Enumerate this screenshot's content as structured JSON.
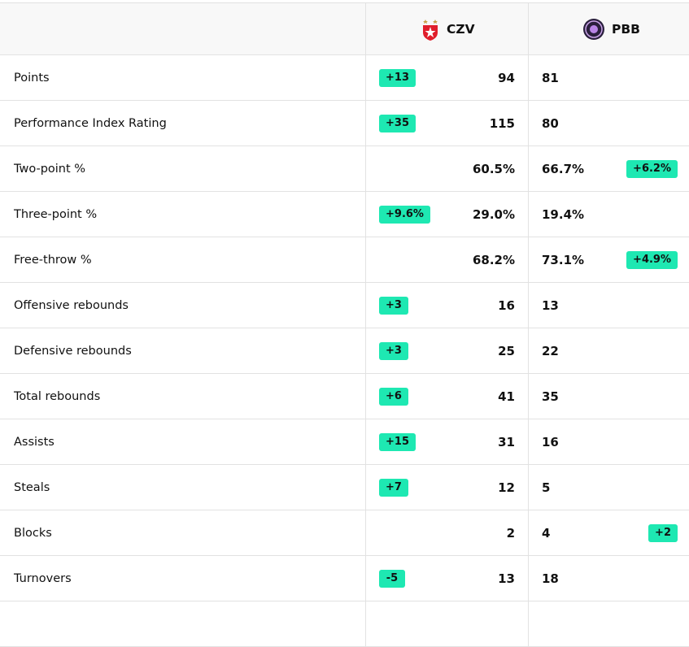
{
  "header": {
    "home_team": "CZV",
    "away_team": "PBB"
  },
  "rows": [
    {
      "label": "Points",
      "home": "94",
      "away": "81",
      "home_diff": "+13"
    },
    {
      "label": "Performance Index Rating",
      "home": "115",
      "away": "80",
      "home_diff": "+35"
    },
    {
      "label": "Two-point %",
      "home": "60.5%",
      "away": "66.7%",
      "away_diff": "+6.2%"
    },
    {
      "label": "Three-point %",
      "home": "29.0%",
      "away": "19.4%",
      "home_diff": "+9.6%"
    },
    {
      "label": "Free-throw %",
      "home": "68.2%",
      "away": "73.1%",
      "away_diff": "+4.9%"
    },
    {
      "label": "Offensive rebounds",
      "home": "16",
      "away": "13",
      "home_diff": "+3"
    },
    {
      "label": "Defensive rebounds",
      "home": "25",
      "away": "22",
      "home_diff": "+3"
    },
    {
      "label": "Total rebounds",
      "home": "41",
      "away": "35",
      "home_diff": "+6"
    },
    {
      "label": "Assists",
      "home": "31",
      "away": "16",
      "home_diff": "+15"
    },
    {
      "label": "Steals",
      "home": "12",
      "away": "5",
      "home_diff": "+7"
    },
    {
      "label": "Blocks",
      "home": "2",
      "away": "4",
      "away_diff": "+2"
    },
    {
      "label": "Turnovers",
      "home": "13",
      "away": "18",
      "home_diff": "-5"
    }
  ]
}
